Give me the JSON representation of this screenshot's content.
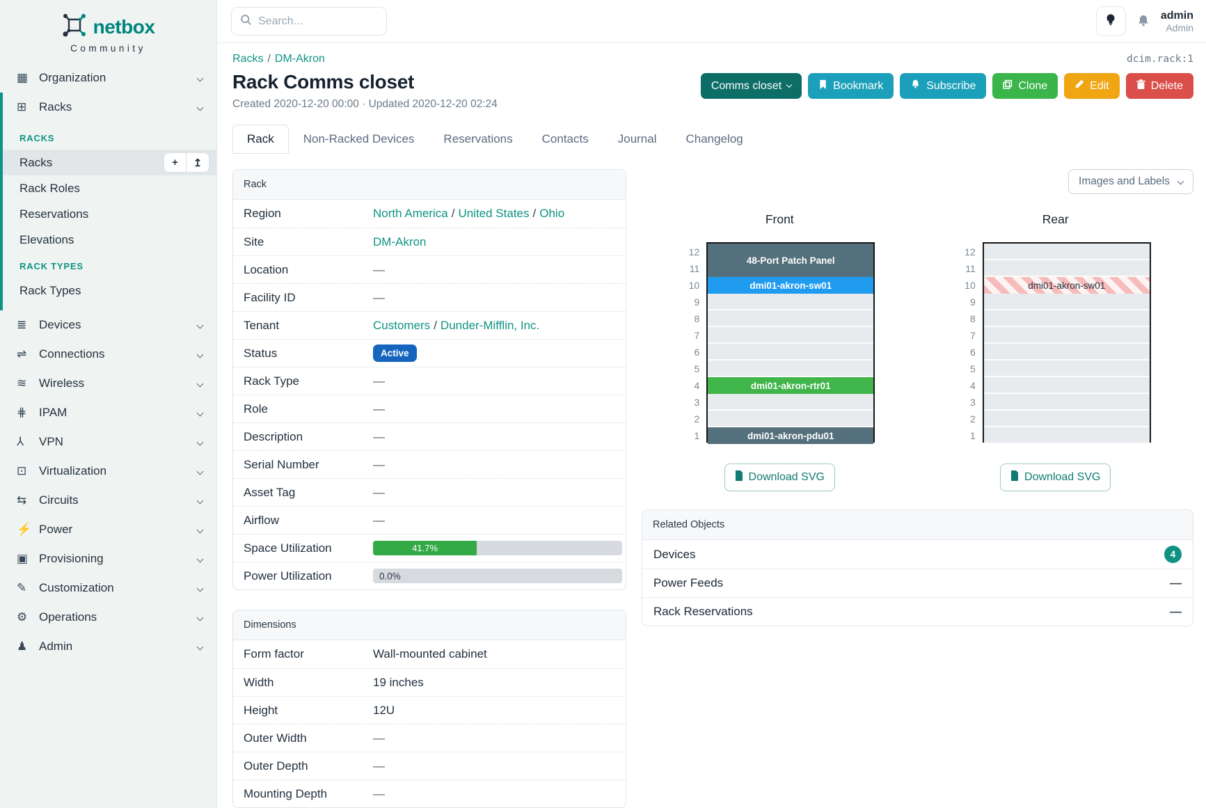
{
  "brand": {
    "name": "netbox",
    "subtitle": "Community"
  },
  "topbar": {
    "search_placeholder": "Search...",
    "user_name": "admin",
    "user_role": "Admin"
  },
  "page": {
    "breadcrumb": [
      "Racks",
      "DM-Akron"
    ],
    "object_ref": "dcim.rack:1",
    "title": "Rack Comms closet",
    "meta": "Created 2020-12-20 00:00 · Updated 2020-12-20 02:24"
  },
  "actions": {
    "primary": "Comms closet",
    "bookmark": "Bookmark",
    "subscribe": "Subscribe",
    "clone": "Clone",
    "edit": "Edit",
    "delete": "Delete"
  },
  "tabs": [
    {
      "label": "Rack"
    },
    {
      "label": "Non-Racked Devices"
    },
    {
      "label": "Reservations"
    },
    {
      "label": "Contacts"
    },
    {
      "label": "Journal"
    },
    {
      "label": "Changelog"
    }
  ],
  "sidebar": {
    "items_top": [
      {
        "label": "Organization",
        "icon": "▦"
      },
      {
        "label": "Racks",
        "icon": "⊞"
      }
    ],
    "racks_menu": {
      "sections": [
        {
          "header": "RACKS",
          "items": [
            "Racks",
            "Rack Roles",
            "Reservations",
            "Elevations"
          ]
        },
        {
          "header": "RACK TYPES",
          "items": [
            "Rack Types"
          ]
        }
      ],
      "add_button": "+",
      "import_button": "↥"
    },
    "items_bottom": [
      {
        "label": "Devices",
        "icon": "≣"
      },
      {
        "label": "Connections",
        "icon": "⇌"
      },
      {
        "label": "Wireless",
        "icon": "≋"
      },
      {
        "label": "IPAM",
        "icon": "⋕"
      },
      {
        "label": "VPN",
        "icon": "⅄"
      },
      {
        "label": "Virtualization",
        "icon": "⊡"
      },
      {
        "label": "Circuits",
        "icon": "⇆"
      },
      {
        "label": "Power",
        "icon": "⚡"
      },
      {
        "label": "Provisioning",
        "icon": "▣"
      },
      {
        "label": "Customization",
        "icon": "✎"
      },
      {
        "label": "Operations",
        "icon": "⚙"
      },
      {
        "label": "Admin",
        "icon": "♟"
      }
    ]
  },
  "rack_panel": {
    "header": "Rack",
    "region_label": "Region",
    "region_links": [
      "North America",
      "United States",
      "Ohio"
    ],
    "site_label": "Site",
    "site": "DM-Akron",
    "location_label": "Location",
    "location": "—",
    "facility_label": "Facility ID",
    "facility": "—",
    "tenant_label": "Tenant",
    "tenant_links": [
      "Customers",
      "Dunder-Mifflin, Inc."
    ],
    "status_label": "Status",
    "status": "Active",
    "rack_type_label": "Rack Type",
    "rack_type": "—",
    "role_label": "Role",
    "role": "—",
    "description_label": "Description",
    "description": "—",
    "serial_label": "Serial Number",
    "serial": "—",
    "asset_label": "Asset Tag",
    "asset": "—",
    "airflow_label": "Airflow",
    "airflow": "—",
    "space_label": "Space Utilization",
    "space_percent": 41.7,
    "space_text": "41.7%",
    "power_label": "Power Utilization",
    "power_percent": 0,
    "power_text": "0.0%"
  },
  "dimensions_panel": {
    "header": "Dimensions",
    "rows": [
      {
        "label": "Form factor",
        "value": "Wall-mounted cabinet"
      },
      {
        "label": "Width",
        "value": "19 inches"
      },
      {
        "label": "Height",
        "value": "12U"
      },
      {
        "label": "Outer Width",
        "value": "—"
      },
      {
        "label": "Outer Depth",
        "value": "—"
      },
      {
        "label": "Mounting Depth",
        "value": "—"
      }
    ]
  },
  "elevations": {
    "view_selector": "Images and Labels",
    "download_label": "Download SVG",
    "rack_height_units": 12,
    "front": {
      "title": "Front",
      "devices": [
        {
          "name": "48-Port Patch Panel",
          "unit": 11,
          "u_height": 2,
          "style": "slate"
        },
        {
          "name": "dmi01-akron-sw01",
          "unit": 10,
          "u_height": 1,
          "style": "blue"
        },
        {
          "name": "dmi01-akron-rtr01",
          "unit": 4,
          "u_height": 1,
          "style": "green"
        },
        {
          "name": "dmi01-akron-pdu01",
          "unit": 1,
          "u_height": 1,
          "style": "slate"
        }
      ]
    },
    "rear": {
      "title": "Rear",
      "devices": [
        {
          "name": "dmi01-akron-sw01",
          "unit": 10,
          "u_height": 1,
          "style": "striped"
        }
      ]
    }
  },
  "related_panel": {
    "header": "Related Objects",
    "rows": [
      {
        "label": "Devices",
        "count": "4"
      },
      {
        "label": "Power Feeds",
        "value": "—"
      },
      {
        "label": "Rack Reservations",
        "value": "—"
      }
    ]
  },
  "colors": {
    "accent_teal": "#0f9384",
    "brand_teal": "#00857e",
    "status_active_badge": "#1565bf",
    "utilization_green": "#34aa47",
    "device_slate": "#55707d",
    "device_blue": "#1f9bf0",
    "device_green": "#3fb54a",
    "button_cyan": "#1b9fba",
    "button_green": "#3ab54a",
    "button_amber": "#f0a513",
    "button_red": "#da4f49",
    "button_dark_teal": "#0d6e67"
  }
}
